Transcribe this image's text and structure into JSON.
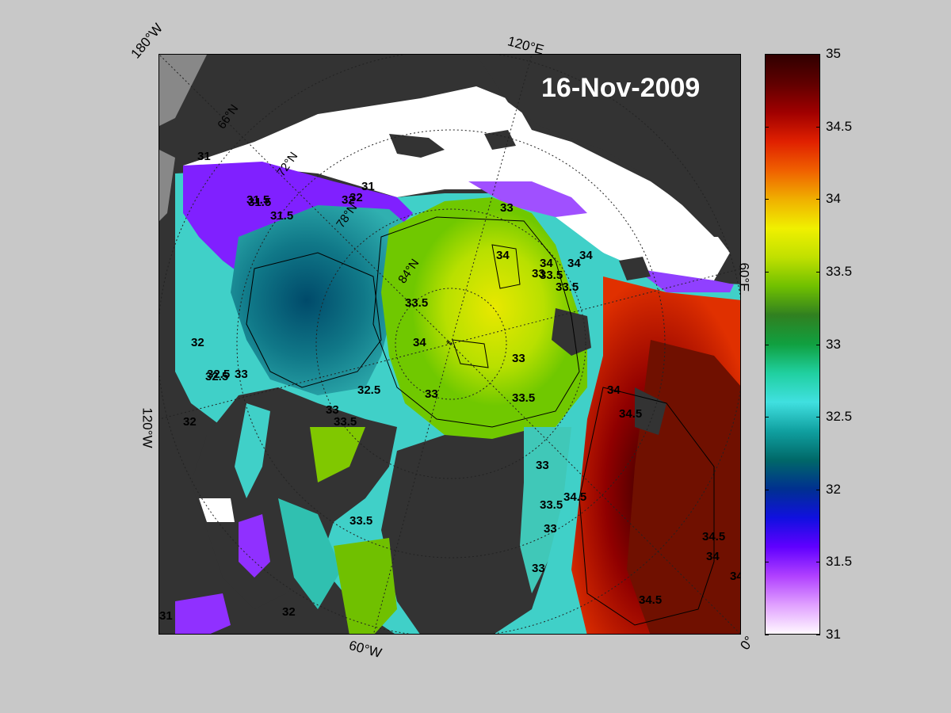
{
  "date_label": "16-Nov-2009",
  "edge_labels": {
    "top_left": "180°W",
    "top": "120°E",
    "right": "60°E",
    "left": "120°W",
    "bottom": "60°W",
    "bottom_right": "0°"
  },
  "inner_labels": {
    "lat_66": "66°N",
    "lat_72": "72°N",
    "lat_78": "78°N",
    "lat_84": "84°N"
  },
  "contour_labels": [
    "31",
    "31.5",
    "32",
    "31",
    "31.5",
    "32",
    "33",
    "34",
    "33",
    "33.5",
    "34",
    "33.5",
    "34",
    "34",
    "33.5",
    "32.5",
    "33",
    "33",
    "33.5",
    "33",
    "34",
    "34.5",
    "34.5",
    "34.5",
    "34.5",
    "34",
    "33",
    "33.5",
    "33",
    "33",
    "32",
    "31",
    "32",
    "32.5",
    "32",
    "31.5",
    "32.5",
    "33",
    "34",
    "33.5",
    "33.5",
    "34"
  ],
  "colorbar": {
    "ticks": [
      "35",
      "34.5",
      "34",
      "33.5",
      "33",
      "32.5",
      "32",
      "31.5",
      "31"
    ],
    "colors": [
      "#fff8ff",
      "#e0a0ff",
      "#b040ff",
      "#6000ff",
      "#1010e0",
      "#003090",
      "#006868",
      "#10a0a0",
      "#40e0e0",
      "#20d0a0",
      "#10a040",
      "#308020",
      "#70c000",
      "#c0e000",
      "#f0f000",
      "#f0b000",
      "#f06000",
      "#e02000",
      "#a00000",
      "#600000",
      "#300000"
    ],
    "min": 31,
    "max": 35
  }
}
